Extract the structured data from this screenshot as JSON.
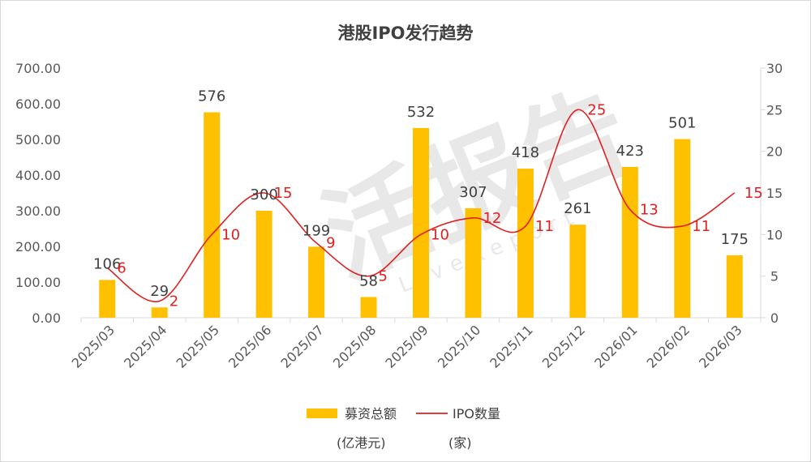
{
  "chart_data": {
    "type": "bar+line",
    "title": "港股IPO发行趋势",
    "categories": [
      "2025/03",
      "2025/04",
      "2025/05",
      "2025/06",
      "2025/07",
      "2025/08",
      "2025/09",
      "2025/10",
      "2025/11",
      "2025/12",
      "2026/01",
      "2026/02",
      "2026/03"
    ],
    "series": [
      {
        "name": "募资总额",
        "unit_label": "(亿港元)",
        "type": "bar",
        "axis": "left",
        "color": "#FFC000",
        "values": [
          106,
          29,
          576,
          300,
          199,
          58,
          532,
          307,
          418,
          261,
          423,
          501,
          175
        ]
      },
      {
        "name": "IPO数量",
        "unit_label": "(家)",
        "type": "line",
        "axis": "right",
        "color": "#E02020",
        "values": [
          6,
          2,
          10,
          15,
          9,
          5,
          10,
          12,
          11,
          25,
          13,
          11,
          15
        ]
      }
    ],
    "left_axis": {
      "ylim": [
        0,
        700
      ],
      "ticks": [
        "0.00",
        "100.00",
        "200.00",
        "300.00",
        "400.00",
        "500.00",
        "600.00",
        "700.00"
      ]
    },
    "right_axis": {
      "ylim": [
        0,
        30
      ],
      "ticks": [
        "0",
        "5",
        "10",
        "15",
        "20",
        "25",
        "30"
      ]
    },
    "legend": "bottom",
    "grid": false
  },
  "watermark": {
    "main": "活报告",
    "sub": "LiveReport"
  }
}
